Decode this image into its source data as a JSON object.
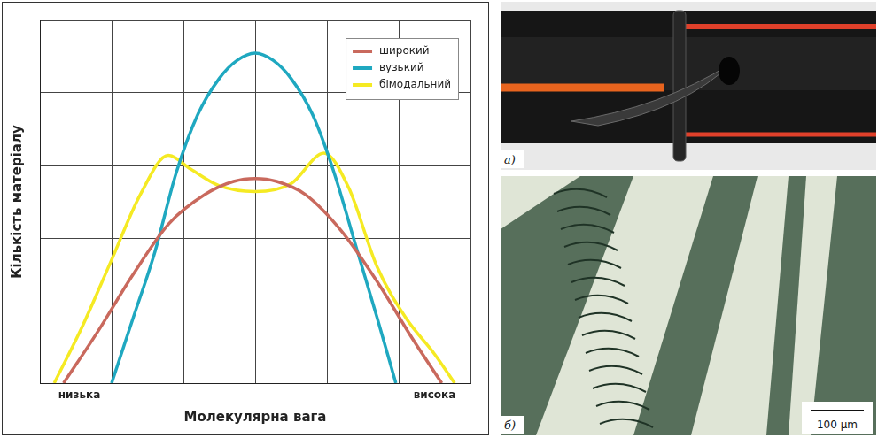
{
  "chart_data": {
    "type": "line",
    "x_label": "Молекулярна вага",
    "y_label": "Кількість матеріалу",
    "xlim": [
      0,
      6
    ],
    "xticks": [
      0,
      1,
      2,
      3,
      4,
      5,
      6
    ],
    "ylim": [
      0,
      5
    ],
    "yticks": [
      0,
      1,
      2,
      3,
      4,
      5
    ],
    "grid": true,
    "tick_labels": false,
    "legend": "top-right",
    "annotations": [
      {
        "text": "низька",
        "x": 0.55
      },
      {
        "text": "висока",
        "x": 5.5
      }
    ],
    "series": [
      {
        "name": "широкий",
        "color": "#c9695d",
        "x": [
          0.33,
          0.8,
          1.3,
          1.8,
          2.3,
          2.7,
          3.0,
          3.3,
          3.7,
          4.2,
          4.7,
          5.2,
          5.6
        ],
        "values": [
          0,
          0.7,
          1.5,
          2.2,
          2.6,
          2.78,
          2.82,
          2.78,
          2.6,
          2.1,
          1.4,
          0.6,
          0
        ]
      },
      {
        "name": "вузький",
        "color": "#1fa8c0",
        "x": [
          1.0,
          1.3,
          1.6,
          1.9,
          2.2,
          2.5,
          2.75,
          3.0,
          3.25,
          3.5,
          3.8,
          4.1,
          4.4,
          4.7,
          4.96
        ],
        "values": [
          0,
          0.9,
          1.8,
          2.9,
          3.7,
          4.2,
          4.45,
          4.55,
          4.45,
          4.2,
          3.7,
          2.9,
          1.9,
          0.9,
          0
        ]
      },
      {
        "name": "бімодальний",
        "color": "#f5ea23",
        "x": [
          0.2,
          0.6,
          1.0,
          1.4,
          1.79,
          2.1,
          2.5,
          3.0,
          3.5,
          3.96,
          4.3,
          4.7,
          5.1,
          5.5,
          5.78
        ],
        "values": [
          0,
          0.8,
          1.7,
          2.6,
          3.14,
          2.95,
          2.72,
          2.64,
          2.75,
          3.17,
          2.7,
          1.6,
          0.9,
          0.4,
          0
        ]
      }
    ]
  },
  "photos": [
    {
      "label": "а)"
    },
    {
      "label": "б)",
      "scale_bar": "100 µm"
    }
  ]
}
